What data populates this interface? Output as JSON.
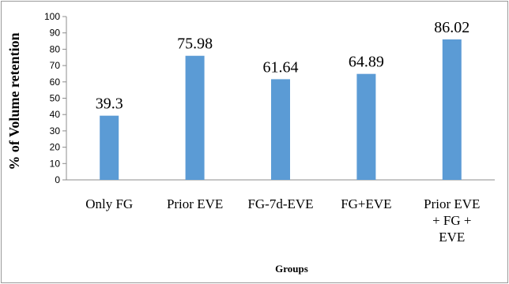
{
  "chart_data": {
    "type": "bar",
    "categories": [
      "Only FG",
      "Prior EVE",
      "FG-7d-EVE",
      "FG+EVE",
      "Prior EVE + FG + EVE"
    ],
    "category_lines": [
      [
        "Only FG"
      ],
      [
        "Prior EVE"
      ],
      [
        "FG-7d-EVE"
      ],
      [
        "FG+EVE"
      ],
      [
        "Prior EVE",
        "+ FG +",
        "EVE"
      ]
    ],
    "values": [
      39.3,
      75.98,
      61.64,
      64.89,
      86.02
    ],
    "data_labels": [
      "39.3",
      "75.98",
      "61.64",
      "64.89",
      "86.02"
    ],
    "title": "",
    "xlabel": "Groups",
    "ylabel": "% of Volume retention",
    "ylim": [
      0,
      100
    ],
    "yticks": [
      0,
      10,
      20,
      30,
      40,
      50,
      60,
      70,
      80,
      90,
      100
    ],
    "grid": false,
    "legend": "none",
    "bar_color": "#5b9bd5",
    "axis_color": "#8c8c8c"
  }
}
